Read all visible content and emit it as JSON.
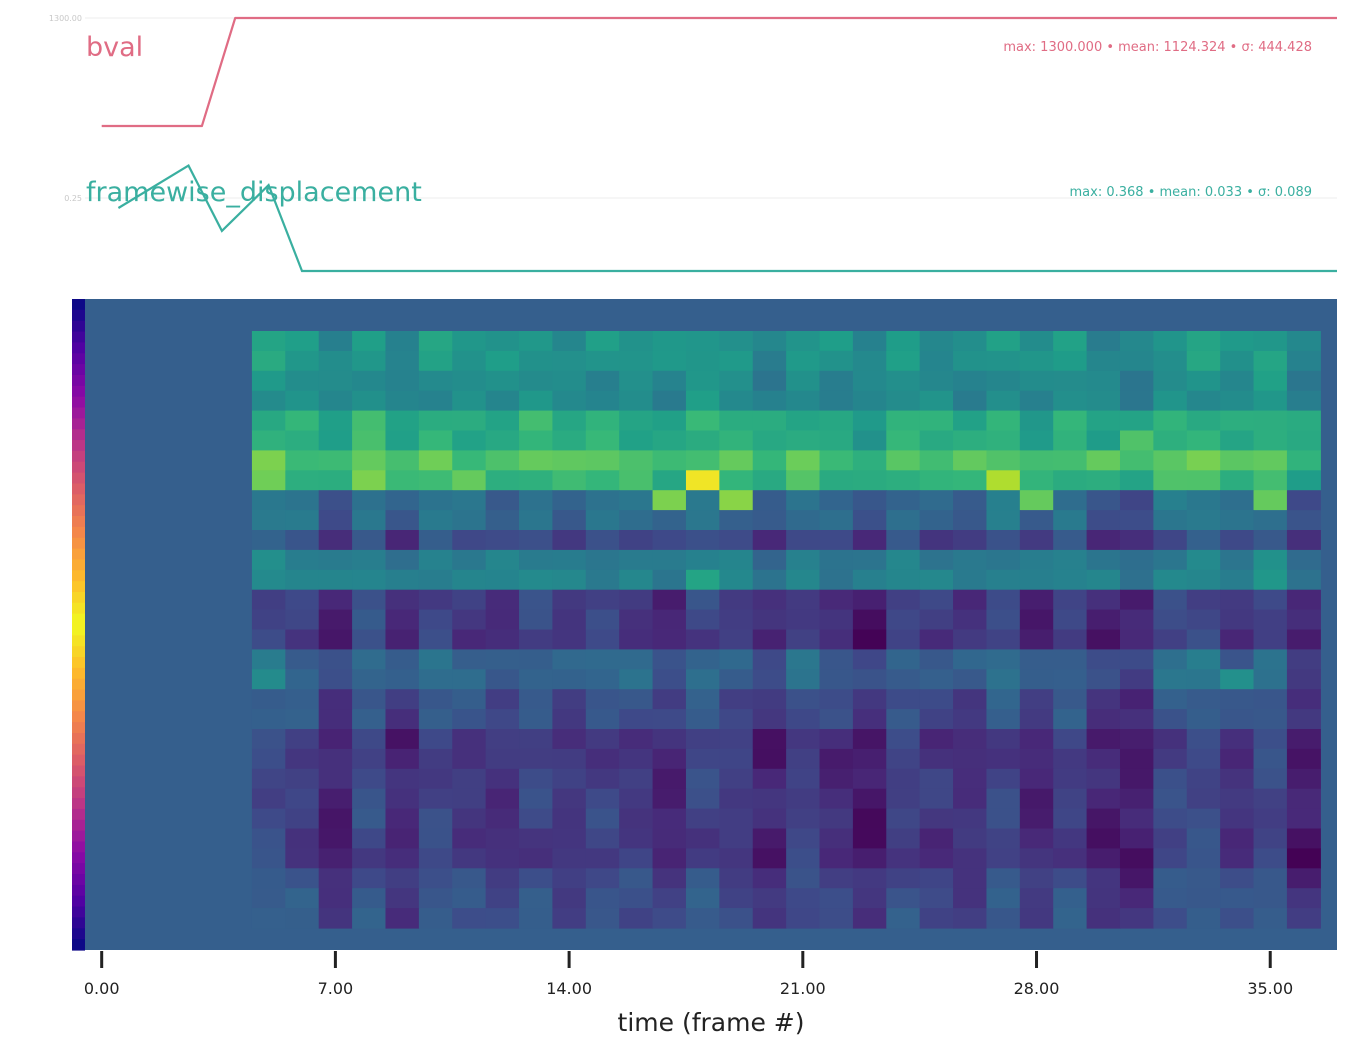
{
  "chart_data": {
    "type": "heatmap",
    "panels": [
      {
        "type": "line",
        "name": "bval",
        "color": "#e06c84",
        "stats_text": "max: 1300.000 • mean: 1124.324 • σ: 444.428",
        "y_tick_label": "1300.00",
        "y_tick_value": 1300,
        "ylim": [
          0,
          1300
        ],
        "x": [
          0,
          1,
          2,
          3,
          4,
          5,
          6,
          37
        ],
        "values": [
          0,
          0,
          0,
          0,
          1300,
          1300,
          1300,
          1300
        ]
      },
      {
        "type": "line",
        "name": "framewise_displacement",
        "color": "#3aafa0",
        "stats_text": "max: 0.368 • mean: 0.033 • σ: 0.089",
        "y_tick_label": "0.25",
        "y_tick_value": 0.25,
        "ylim": [
          0,
          0.37
        ],
        "x": [
          0.5,
          2.6,
          3.6,
          5.0,
          6.0,
          37
        ],
        "values": [
          0.22,
          0.368,
          0.14,
          0.3,
          0.0,
          0.0
        ]
      }
    ],
    "heatmap": {
      "colormap": "viridis",
      "x_start": 4.5,
      "x_end": 36.5,
      "columns": 32,
      "rows": 30,
      "background_value": 0.3,
      "bands": [
        {
          "r0": 0,
          "r1": 2,
          "v": 0.52
        },
        {
          "r0": 2,
          "r1": 4,
          "v": 0.48
        },
        {
          "r0": 4,
          "r1": 6,
          "v": 0.62
        },
        {
          "r0": 6,
          "r1": 7,
          "v": 0.72
        },
        {
          "r0": 7,
          "r1": 8,
          "v": 0.66
        },
        {
          "r0": 8,
          "r1": 10,
          "v": 0.35
        },
        {
          "r0": 10,
          "r1": 11,
          "v": 0.22
        },
        {
          "r0": 11,
          "r1": 12,
          "v": 0.42
        },
        {
          "r0": 12,
          "r1": 13,
          "v": 0.45
        },
        {
          "r0": 13,
          "r1": 15,
          "v": 0.18
        },
        {
          "r0": 15,
          "r1": 16,
          "v": 0.16
        },
        {
          "r0": 16,
          "r1": 18,
          "v": 0.32
        },
        {
          "r0": 18,
          "r1": 20,
          "v": 0.24
        },
        {
          "r0": 20,
          "r1": 22,
          "v": 0.16
        },
        {
          "r0": 22,
          "r1": 25,
          "v": 0.18
        },
        {
          "r0": 25,
          "r1": 27,
          "v": 0.16
        },
        {
          "r0": 27,
          "r1": 28,
          "v": 0.22
        },
        {
          "r0": 28,
          "r1": 30,
          "v": 0.24
        }
      ],
      "column_offsets": [
        0.06,
        0.02,
        -0.08,
        0.05,
        -0.06,
        0.04,
        0.0,
        -0.03,
        0.03,
        -0.02,
        0.02,
        0.0,
        -0.06,
        0.04,
        0.0,
        -0.08,
        0.02,
        -0.04,
        -0.1,
        0.02,
        -0.02,
        -0.04,
        0.04,
        -0.06,
        0.02,
        -0.08,
        -0.1,
        0.04,
        0.06,
        -0.02,
        0.05,
        -0.1
      ],
      "hotspots": [
        {
          "c": 0,
          "r": 6,
          "v": 0.8
        },
        {
          "c": 0,
          "r": 7,
          "v": 0.78
        },
        {
          "c": 3,
          "r": 7,
          "v": 0.8
        },
        {
          "c": 5,
          "r": 6,
          "v": 0.78
        },
        {
          "c": 6,
          "r": 7,
          "v": 0.76
        },
        {
          "c": 8,
          "r": 6,
          "v": 0.76
        },
        {
          "c": 12,
          "r": 8,
          "v": 0.8
        },
        {
          "c": 13,
          "r": 7,
          "v": 0.98
        },
        {
          "c": 14,
          "r": 8,
          "v": 0.82
        },
        {
          "c": 22,
          "r": 7,
          "v": 0.88
        },
        {
          "c": 23,
          "r": 8,
          "v": 0.76
        },
        {
          "c": 25,
          "r": 6,
          "v": 0.76
        },
        {
          "c": 26,
          "r": 5,
          "v": 0.72
        },
        {
          "c": 29,
          "r": 6,
          "v": 0.74
        },
        {
          "c": 30,
          "r": 8,
          "v": 0.76
        },
        {
          "c": 13,
          "r": 12,
          "v": 0.58
        },
        {
          "c": 0,
          "r": 17,
          "v": 0.48
        },
        {
          "c": 29,
          "r": 17,
          "v": 0.5
        }
      ]
    },
    "colorbar": {
      "colormap": "plasma"
    },
    "x_axis": {
      "xlabel": "time (frame #)",
      "xlim": [
        -0.5,
        37.0
      ],
      "ticks": [
        0,
        7,
        14,
        21,
        28,
        35
      ],
      "tick_labels": [
        "0.00",
        "7.00",
        "14.00",
        "21.00",
        "28.00",
        "35.00"
      ]
    }
  }
}
